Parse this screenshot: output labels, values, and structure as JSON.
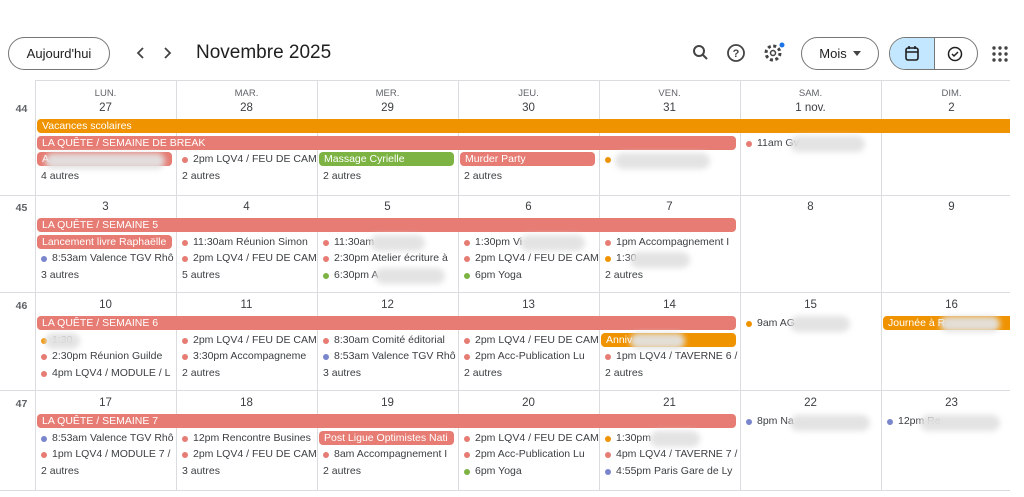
{
  "header": {
    "today": "Aujourd'hui",
    "title": "Novembre 2025",
    "view": "Mois"
  },
  "day_names": [
    "LUN.",
    "MAR.",
    "MER.",
    "JEU.",
    "VEN.",
    "SAM.",
    "DIM."
  ],
  "weeks": [
    {
      "number": "44",
      "dates": [
        "27",
        "28",
        "29",
        "30",
        "31",
        "1 nov.",
        "2"
      ],
      "banners": [
        {
          "label": "Vacances scolaires",
          "color": "#f09300"
        },
        {
          "label": "LA QUÊTE / SEMAINE DE BREAK",
          "color": "#e67c73"
        },
        {
          "label": "A",
          "color": "#e67c73"
        },
        {
          "label": "Massage Cyrielle",
          "color": "#7cb342"
        },
        {
          "label": "Murder Party",
          "color": "#e67c73"
        }
      ],
      "cells": [
        [
          {
            "text": "4 autres"
          }
        ],
        [
          {
            "text": "2pm LQV4 / FEU DE CAM",
            "color": "#e67c73"
          },
          {
            "text": "2 autres"
          }
        ],
        [
          {
            "text": "2 autres"
          }
        ],
        [
          {
            "text": "2 autres"
          }
        ],
        [
          {
            "text": "",
            "color": "#f09300"
          }
        ],
        [
          {
            "text": "11am Gv",
            "color": "#e67c73"
          }
        ],
        []
      ]
    },
    {
      "number": "45",
      "dates": [
        "3",
        "4",
        "5",
        "6",
        "7",
        "8",
        "9"
      ],
      "banners": [
        {
          "label": "LA QUÊTE / SEMAINE 5",
          "color": "#e67c73"
        },
        {
          "label": "Lancement livre Raphaëlle",
          "color": "#e67c73"
        }
      ],
      "cells": [
        [
          {
            "text": "8:53am Valence TGV Rhô",
            "color": "#7986cb"
          },
          {
            "text": "3 autres"
          }
        ],
        [
          {
            "text": "11:30am Réunion Simon",
            "color": "#e67c73"
          },
          {
            "text": "2pm LQV4 / FEU DE CAM",
            "color": "#e67c73"
          },
          {
            "text": "5 autres"
          }
        ],
        [
          {
            "text": "11:30am",
            "color": "#e67c73"
          },
          {
            "text": "2:30pm Atelier écriture à",
            "color": "#e67c73"
          },
          {
            "text": "6:30pm A",
            "color": "#7cb342"
          }
        ],
        [
          {
            "text": "1:30pm Vi",
            "color": "#e67c73"
          },
          {
            "text": "2pm LQV4 / FEU DE CAM",
            "color": "#e67c73"
          },
          {
            "text": "6pm Yoga",
            "color": "#7cb342"
          }
        ],
        [
          {
            "text": "1pm Accompagnement I",
            "color": "#e67c73"
          },
          {
            "text": "1:30",
            "color": "#f09300"
          },
          {
            "text": "2 autres"
          }
        ],
        [],
        []
      ]
    },
    {
      "number": "46",
      "dates": [
        "10",
        "11",
        "12",
        "13",
        "14",
        "15",
        "16"
      ],
      "banners": [
        {
          "label": "LA QUÊTE / SEMAINE 6",
          "color": "#e67c73"
        },
        {
          "label": "Anniv",
          "color": "#f09300"
        },
        {
          "label": "Journée à R",
          "color": "#f09300"
        }
      ],
      "cells": [
        [
          {
            "text": "1:30",
            "color": "#f09300"
          },
          {
            "text": "2:30pm Réunion Guilde",
            "color": "#e67c73"
          },
          {
            "text": "4pm LQV4 / MODULE / L",
            "color": "#e67c73"
          }
        ],
        [
          {
            "text": "2pm LQV4 / FEU DE CAM",
            "color": "#e67c73"
          },
          {
            "text": "3:30pm Accompagneme",
            "color": "#e67c73"
          },
          {
            "text": "2 autres"
          }
        ],
        [
          {
            "text": "8:30am Comité éditorial",
            "color": "#e67c73"
          },
          {
            "text": "8:53am Valence TGV Rhô",
            "color": "#7986cb"
          },
          {
            "text": "3 autres"
          }
        ],
        [
          {
            "text": "2pm LQV4 / FEU DE CAM",
            "color": "#e67c73"
          },
          {
            "text": "2pm Acc-Publication Lu",
            "color": "#e67c73"
          },
          {
            "text": "2 autres"
          }
        ],
        [
          {
            "text": "1pm LQV4 / TAVERNE 6 /",
            "color": "#e67c73"
          },
          {
            "text": "2 autres"
          }
        ],
        [
          {
            "text": "9am AG",
            "color": "#f09300"
          }
        ],
        []
      ]
    },
    {
      "number": "47",
      "dates": [
        "17",
        "18",
        "19",
        "20",
        "21",
        "22",
        "23"
      ],
      "banners": [
        {
          "label": "LA QUÊTE / SEMAINE 7",
          "color": "#e67c73"
        },
        {
          "label": "Post Ligue Optimistes Nati",
          "color": "#e67c73"
        }
      ],
      "cells": [
        [
          {
            "text": "8:53am Valence TGV Rhô",
            "color": "#7986cb"
          },
          {
            "text": "1pm LQV4 / MODULE 7 /",
            "color": "#e67c73"
          },
          {
            "text": "2 autres"
          }
        ],
        [
          {
            "text": "12pm Rencontre Busines",
            "color": "#e67c73"
          },
          {
            "text": "2pm LQV4 / FEU DE CAM",
            "color": "#e67c73"
          },
          {
            "text": "3 autres"
          }
        ],
        [
          {
            "text": "8am Accompagnement I",
            "color": "#e67c73"
          },
          {
            "text": "2 autres"
          }
        ],
        [
          {
            "text": "2pm LQV4 / FEU DE CAM",
            "color": "#e67c73"
          },
          {
            "text": "2pm Acc-Publication Lu",
            "color": "#e67c73"
          },
          {
            "text": "6pm Yoga",
            "color": "#7cb342"
          }
        ],
        [
          {
            "text": "1:30pm",
            "color": "#f09300"
          },
          {
            "text": "4pm LQV4 / TAVERNE 7 /",
            "color": "#e67c73"
          },
          {
            "text": "4:55pm Paris Gare de Ly",
            "color": "#7986cb"
          }
        ],
        [
          {
            "text": "8pm Na",
            "color": "#7986cb"
          }
        ],
        [
          {
            "text": "12pm Re",
            "color": "#7986cb"
          }
        ]
      ]
    }
  ]
}
